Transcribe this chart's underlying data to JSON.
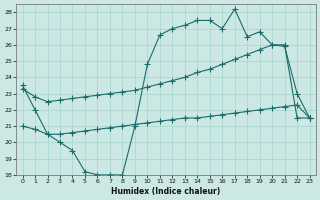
{
  "xlabel": "Humidex (Indice chaleur)",
  "bg_color": "#cce8e4",
  "line_color": "#1a6b6b",
  "grid_color": "#a8d4ce",
  "xlim": [
    -0.5,
    23.5
  ],
  "ylim": [
    18,
    28.5
  ],
  "xticks": [
    0,
    1,
    2,
    3,
    4,
    5,
    6,
    7,
    8,
    9,
    10,
    11,
    12,
    13,
    14,
    15,
    16,
    17,
    18,
    19,
    20,
    21,
    22,
    23
  ],
  "yticks": [
    18,
    19,
    20,
    21,
    22,
    23,
    24,
    25,
    26,
    27,
    28
  ],
  "line1_x": [
    0,
    1,
    2,
    3,
    4,
    5,
    6,
    7,
    8,
    9,
    10,
    11,
    12,
    13,
    14,
    15,
    16,
    17,
    18,
    19,
    20,
    21,
    22,
    23
  ],
  "line1_y": [
    23.5,
    22.0,
    20.5,
    20.0,
    19.5,
    18.2,
    18.0,
    18.0,
    18.0,
    21.0,
    24.8,
    26.6,
    27.0,
    27.2,
    27.5,
    27.5,
    27.0,
    28.2,
    26.5,
    26.8,
    26.0,
    25.9,
    23.0,
    21.5
  ],
  "line2_x": [
    0,
    1,
    2,
    3,
    4,
    5,
    6,
    7,
    8,
    9,
    10,
    11,
    12,
    13,
    14,
    15,
    16,
    17,
    18,
    19,
    20,
    21,
    22,
    23
  ],
  "line2_y": [
    23.3,
    22.8,
    22.5,
    22.6,
    22.7,
    22.8,
    22.9,
    23.0,
    23.1,
    23.2,
    23.4,
    23.6,
    23.8,
    24.0,
    24.3,
    24.5,
    24.8,
    25.1,
    25.4,
    25.7,
    26.0,
    26.0,
    21.5,
    21.5
  ],
  "line3_x": [
    0,
    1,
    2,
    3,
    4,
    5,
    6,
    7,
    8,
    9,
    10,
    11,
    12,
    13,
    14,
    15,
    16,
    17,
    18,
    19,
    20,
    21,
    22,
    23
  ],
  "line3_y": [
    21.0,
    20.8,
    20.5,
    20.5,
    20.6,
    20.7,
    20.8,
    20.9,
    21.0,
    21.1,
    21.2,
    21.3,
    21.4,
    21.5,
    21.5,
    21.6,
    21.7,
    21.8,
    21.9,
    22.0,
    22.1,
    22.2,
    22.3,
    21.5
  ]
}
